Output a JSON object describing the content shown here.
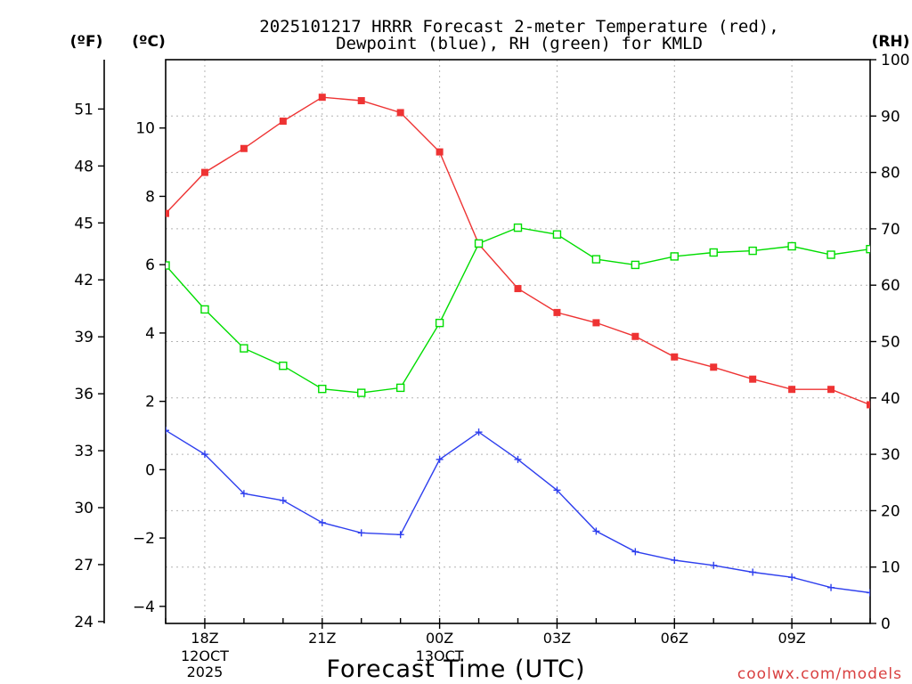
{
  "chart_data": {
    "type": "line",
    "title_line1": "2025101217 HRRR Forecast 2-meter Temperature (red),",
    "title_line2": "Dewpoint (blue), RH (green) for KMLD",
    "xlabel": "Forecast Time (UTC)",
    "watermark": "coolwx.com/models",
    "unit_f": "(ºF)",
    "unit_c": "(ºC)",
    "unit_rh": "(RH)",
    "x_hours": [
      17,
      18,
      19,
      20,
      21,
      22,
      23,
      24,
      25,
      26,
      27,
      28,
      29,
      30,
      31,
      32,
      33,
      34,
      35
    ],
    "x_ticks": [
      {
        "hour": 18,
        "label": "18Z",
        "sub1": "12OCT",
        "sub2": "2025"
      },
      {
        "hour": 21,
        "label": "21Z",
        "sub1": "",
        "sub2": ""
      },
      {
        "hour": 24,
        "label": "00Z",
        "sub1": "13OCT",
        "sub2": ""
      },
      {
        "hour": 27,
        "label": "03Z",
        "sub1": "",
        "sub2": ""
      },
      {
        "hour": 30,
        "label": "06Z",
        "sub1": "",
        "sub2": ""
      },
      {
        "hour": 33,
        "label": "09Z",
        "sub1": "",
        "sub2": ""
      }
    ],
    "y_left_c": {
      "range": [
        -4.5,
        12.0
      ],
      "ticks": [
        "-4",
        "-2",
        "0",
        "2",
        "4",
        "6",
        "8",
        "10"
      ]
    },
    "y_left_f": {
      "ticks": [
        "24",
        "27",
        "30",
        "33",
        "36",
        "39",
        "42",
        "45",
        "48",
        "51"
      ]
    },
    "y_right_rh": {
      "range": [
        0,
        100
      ],
      "ticks": [
        "0",
        "10",
        "20",
        "30",
        "40",
        "50",
        "60",
        "70",
        "80",
        "90",
        "100"
      ]
    },
    "series": [
      {
        "name": "Temperature",
        "color": "#ee3333",
        "axis": "c",
        "marker": "filled-square",
        "values": [
          7.5,
          8.7,
          9.4,
          10.2,
          10.9,
          10.8,
          10.45,
          9.3,
          6.6,
          5.3,
          4.6,
          4.3,
          3.9,
          3.3,
          3.0,
          2.65,
          2.35,
          2.35,
          1.9
        ]
      },
      {
        "name": "Dewpoint",
        "color": "#2e3fee",
        "axis": "c",
        "marker": "plus",
        "values": [
          1.15,
          0.45,
          -0.7,
          -0.9,
          -1.55,
          -1.85,
          -1.9,
          0.3,
          1.1,
          0.3,
          -0.6,
          -1.8,
          -2.4,
          -2.65,
          -2.8,
          -3.0,
          -3.15,
          -3.45,
          -3.6
        ]
      },
      {
        "name": "RH",
        "color": "#00dd00",
        "axis": "rh",
        "marker": "open-square",
        "values": [
          63.5,
          55.7,
          48.8,
          45.7,
          41.6,
          40.9,
          41.8,
          53.3,
          67.4,
          70.2,
          69.0,
          64.6,
          63.6,
          65.1,
          65.8,
          66.1,
          66.9,
          65.4,
          66.4
        ]
      }
    ]
  }
}
